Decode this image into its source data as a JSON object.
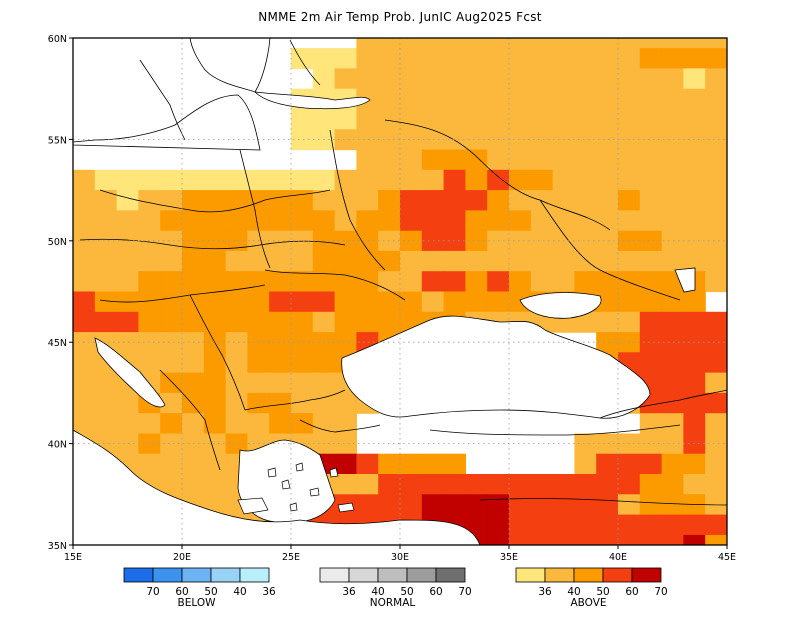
{
  "title": "NMME 2m Air Temp Prob. JunIC  Aug2025 Fcst",
  "map": {
    "lon_labels": [
      "15E",
      "20E",
      "25E",
      "30E",
      "35E",
      "40E",
      "45E"
    ],
    "lat_labels": [
      "60N",
      "55N",
      "50N",
      "45N",
      "40N",
      "35N"
    ],
    "lon_range": [
      15,
      45
    ],
    "lat_range": [
      35,
      60
    ],
    "gridlines": "dotted"
  },
  "legend": [
    {
      "id": "below",
      "label": "BELOW",
      "ticks": [
        "70",
        "60",
        "50",
        "40",
        "36"
      ],
      "colors": [
        "#1c6ee8",
        "#3c92ef",
        "#6cb3f4",
        "#98d2f7",
        "#b9eefb"
      ]
    },
    {
      "id": "normal",
      "label": "NORMAL",
      "ticks": [
        "36",
        "40",
        "50",
        "60",
        "70"
      ],
      "colors": [
        "#ebebeb",
        "#d7d7d7",
        "#bebebe",
        "#9d9d9d",
        "#6f6f6f"
      ]
    },
    {
      "id": "above",
      "label": "ABOVE",
      "ticks": [
        "36",
        "40",
        "50",
        "60",
        "70"
      ],
      "colors": [
        "#ffe57a",
        "#fbb83c",
        "#fb9b00",
        "#f44010",
        "#c10000"
      ]
    }
  ],
  "probability_grid": {
    "cell_size_deg": 1,
    "levels": {
      "0": "no signal",
      "1": "above 36-40",
      "2": "above 40-50",
      "3": "above 50-60",
      "4": "above 60-70",
      "5": "above 70+"
    },
    "rows_north_to_south": [
      "000000000000022222222222222222",
      "000000000011122222222222223333",
      "000000000001222222222222222212",
      "000000000011122222222222222222",
      "000000000011122222222222222222",
      "000000000011222222222222222222",
      "000000000000022233322222222222",
      "211111111111222224343322222222",
      "221223333332223444432222232222",
      "222233333333233444333222222222",
      "222223332223332344322222233222",
      "222223322223333222222222222222",
      "222333333333332244343223333332",
      "433333333444333323333333333330",
      "444333333332333333222222224444",
      "222222323333343300000000334444",
      "222222323333332330000000344444",
      "222233322222220000000000444442",
      "222323323322220000000000224444",
      "222232322332200000000000002242",
      "222322232222200000000002222242",
      "222222222225543333000002444332",
      "222222222222224444444444443322",
      "022222222224444455554444423332",
      "002222222244444455554444444444",
      "000000000000444455554444444453",
      "000000000000000000000000000000"
    ]
  }
}
